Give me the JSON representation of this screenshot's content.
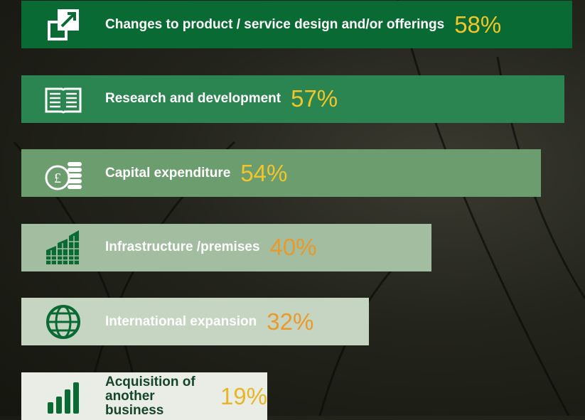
{
  "chart_data": {
    "type": "bar",
    "orientation": "horizontal",
    "categories": [
      "Changes to product / service design and/or offerings",
      "Research and development",
      "Capital expenditure",
      "Infrastructure /premises",
      "International expansion",
      "Acquisition of another business"
    ],
    "values": [
      58,
      57,
      54,
      40,
      32,
      19
    ],
    "value_labels": [
      "58%",
      "57%",
      "54%",
      "40%",
      "32%",
      "19%"
    ],
    "colors": [
      "#0a6a33",
      "#2b8550",
      "#6b9d6f",
      "#a2bda0",
      "#c5d5c1",
      "#e9ede6"
    ],
    "label_colors": [
      "#ffffff",
      "#ffffff",
      "#ffffff",
      "#ffffff",
      "#ffffff",
      "#17452a"
    ],
    "value_label_colors": [
      "#f2c52a",
      "#f2c52a",
      "#f2c52a",
      "#e89a2c",
      "#e89a2c",
      "#e8b526"
    ]
  }
}
